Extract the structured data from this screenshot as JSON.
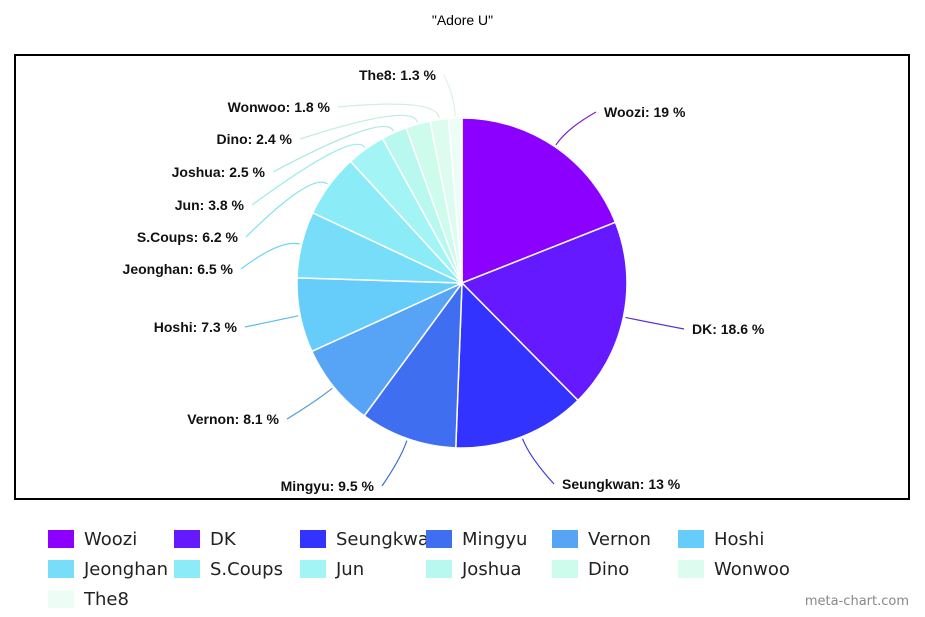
{
  "chart_data": {
    "type": "pie",
    "title": "\"Adore U\"",
    "slices": [
      {
        "name": "Woozi",
        "value": 19,
        "label": "Woozi: 19 %",
        "color": "#8B00FF"
      },
      {
        "name": "DK",
        "value": 18.6,
        "label": "DK: 18.6 %",
        "color": "#6419FF"
      },
      {
        "name": "Seungkwan",
        "value": 13,
        "label": "Seungkwan: 13 %",
        "color": "#3333FF"
      },
      {
        "name": "Mingyu",
        "value": 9.5,
        "label": "Mingyu: 9.5 %",
        "color": "#3F6FF0"
      },
      {
        "name": "Vernon",
        "value": 8.1,
        "label": "Vernon: 8.1 %",
        "color": "#57A3F5"
      },
      {
        "name": "Hoshi",
        "value": 7.3,
        "label": "Hoshi: 7.3 %",
        "color": "#66CCFA"
      },
      {
        "name": "Jeonghan",
        "value": 6.5,
        "label": "Jeonghan: 6.5 %",
        "color": "#77DDF8"
      },
      {
        "name": "S.Coups",
        "value": 6.2,
        "label": "S.Coups: 6.2 %",
        "color": "#8BEBF7"
      },
      {
        "name": "Jun",
        "value": 3.8,
        "label": "Jun: 3.8 %",
        "color": "#A3F5F5"
      },
      {
        "name": "Joshua",
        "value": 2.5,
        "label": "Joshua: 2.5 %",
        "color": "#B9F8EE"
      },
      {
        "name": "Dino",
        "value": 2.4,
        "label": "Dino: 2.4 %",
        "color": "#CDFBEC"
      },
      {
        "name": "Wonwoo",
        "value": 1.8,
        "label": "Wonwoo: 1.8 %",
        "color": "#DDFCEF"
      },
      {
        "name": "The8",
        "value": 1.3,
        "label": "The8: 1.3 %",
        "color": "#EBFDF5"
      }
    ],
    "legend_position": "bottom"
  },
  "footer": {
    "credit": "meta-chart.com"
  }
}
